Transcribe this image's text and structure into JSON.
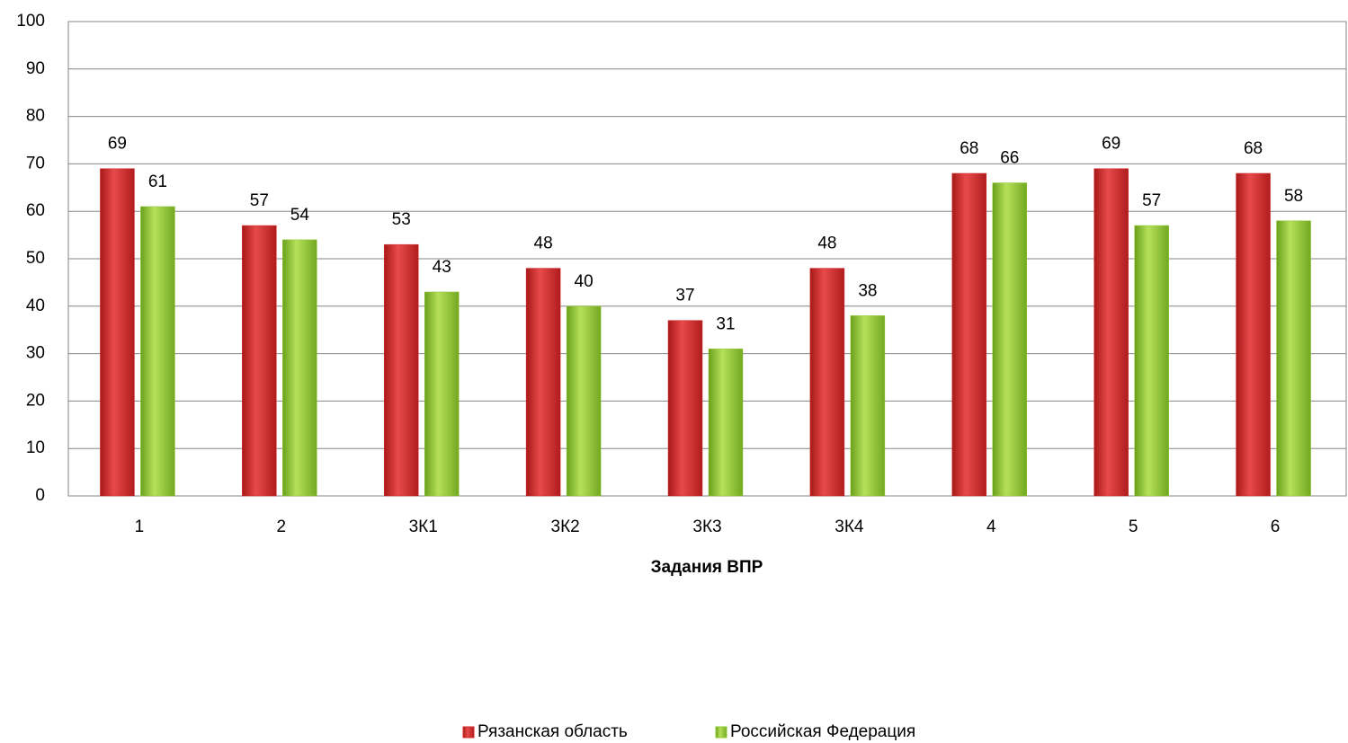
{
  "chart_data": {
    "type": "bar",
    "x_label": "Задания ВПР",
    "categories": [
      "1",
      "2",
      "3К1",
      "3К2",
      "3К3",
      "3К4",
      "4",
      "5",
      "6"
    ],
    "series": [
      {
        "name": "Рязанская область",
        "color": "#d42a2a",
        "values": [
          69,
          57,
          53,
          48,
          37,
          48,
          68,
          69,
          68
        ]
      },
      {
        "name": "Российская Федерация",
        "color": "#8fc832",
        "values": [
          61,
          54,
          43,
          40,
          31,
          38,
          66,
          57,
          58
        ]
      }
    ],
    "ylim": [
      0,
      100
    ],
    "yticks": [
      0,
      10,
      20,
      30,
      40,
      50,
      60,
      70,
      80,
      90,
      100
    ],
    "grid": true,
    "legend": "bottom"
  }
}
